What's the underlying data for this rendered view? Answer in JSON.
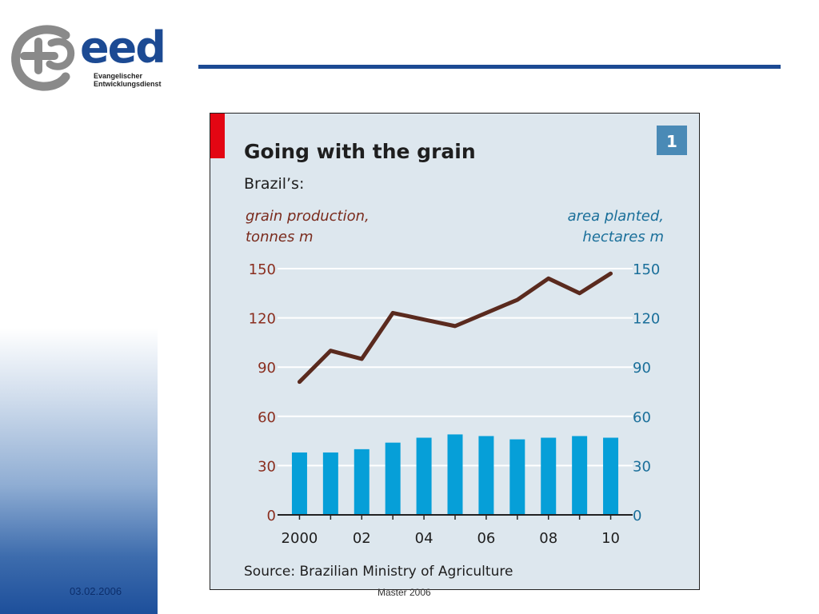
{
  "logo": {
    "name": "eed",
    "line1": "Evangelischer",
    "line2": "Entwicklungsdienst",
    "brand_color": "#1c4a93",
    "mark_color": "#8a8a8a"
  },
  "footer": {
    "date": "03.02.2006",
    "center": "Master 2006"
  },
  "chart_data": {
    "type": "bar",
    "title": "Going with the grain",
    "subtitle": "Brazil’s:",
    "badge": "1",
    "left_axis_label_line1": "grain production,",
    "left_axis_label_line2": "tonnes m",
    "right_axis_label_line1": "area planted,",
    "right_axis_label_line2": "hectares m",
    "source": "Source: Brazilian Ministry of Agriculture",
    "x_tick_labels": [
      {
        "year": 2000,
        "label": "2000"
      },
      {
        "year": 2002,
        "label": "02"
      },
      {
        "year": 2004,
        "label": "04"
      },
      {
        "year": 2006,
        "label": "06"
      },
      {
        "year": 2008,
        "label": "08"
      },
      {
        "year": 2010,
        "label": "10"
      }
    ],
    "y_ticks": [
      0,
      30,
      60,
      90,
      120,
      150
    ],
    "ylim": [
      0,
      150
    ],
    "xlim": [
      1999.5,
      2010.5
    ],
    "grid": true,
    "series": [
      {
        "kind": "line",
        "axis": "left",
        "color": "#5a2a1e",
        "x": [
          2000,
          2001,
          2002,
          2003,
          2004,
          2005,
          2006,
          2007,
          2008,
          2009,
          2010
        ],
        "values": [
          81,
          100,
          95,
          123,
          119,
          115,
          123,
          131,
          144,
          135,
          147
        ]
      },
      {
        "kind": "bar",
        "axis": "right",
        "color": "#069fd8",
        "x": [
          2000,
          2001,
          2002,
          2003,
          2004,
          2005,
          2006,
          2007,
          2008,
          2009,
          2010
        ],
        "values": [
          38,
          38,
          40,
          44,
          47,
          49,
          48,
          46,
          47,
          48,
          47
        ]
      }
    ],
    "colors": {
      "background": "#dde7ee",
      "accent_bar": "#e30613",
      "badge": "#4a8ab6",
      "gridline": "#ffffff",
      "axis": "#222222"
    }
  }
}
